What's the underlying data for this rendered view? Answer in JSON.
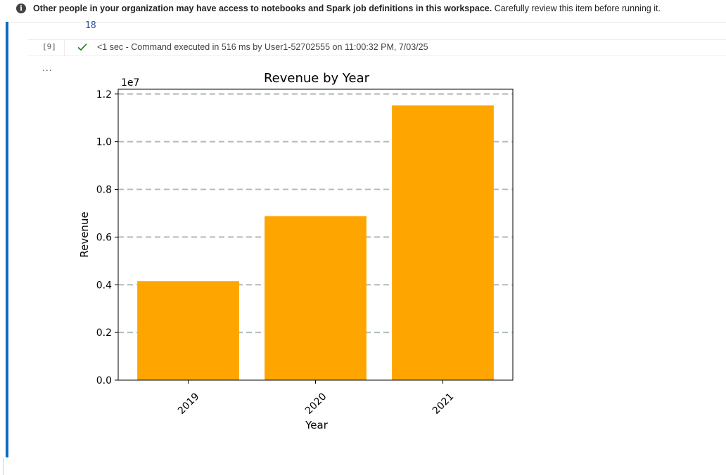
{
  "banner": {
    "icon": "info-icon",
    "bold_text": "Other people in your organization may have access to notebooks and Spark job definitions in this workspace.",
    "normal_text": " Carefully review this item before running it."
  },
  "cell": {
    "line_number": "18",
    "execution_count": "[9]",
    "status_icon": "check-icon",
    "status_color": "#107c10",
    "status_text": "<1 sec - Command executed in 516 ms by User1-52702555 on 11:00:32 PM, 7/03/25",
    "output_menu_icon": "more-icon",
    "output_menu_text": "...",
    "accent_color": "#0f6cbd"
  },
  "chart_data": {
    "type": "bar",
    "title": "Revenue by Year",
    "xlabel": "Year",
    "ylabel": "Revenue",
    "offset_text": "1e7",
    "categories": [
      "2019",
      "2020",
      "2021"
    ],
    "values": [
      4150000,
      6880000,
      11520000
    ],
    "ylim": [
      0,
      12200000
    ],
    "yticks": [
      0,
      0.2,
      0.4,
      0.6,
      0.8,
      1.0,
      1.2
    ],
    "ytick_labels": [
      "0.0",
      "0.2",
      "0.4",
      "0.6",
      "0.8",
      "1.0",
      "1.2"
    ],
    "bar_color": "#ffa500",
    "grid": "y-dashed",
    "grid_color": "#b0bcbc"
  }
}
